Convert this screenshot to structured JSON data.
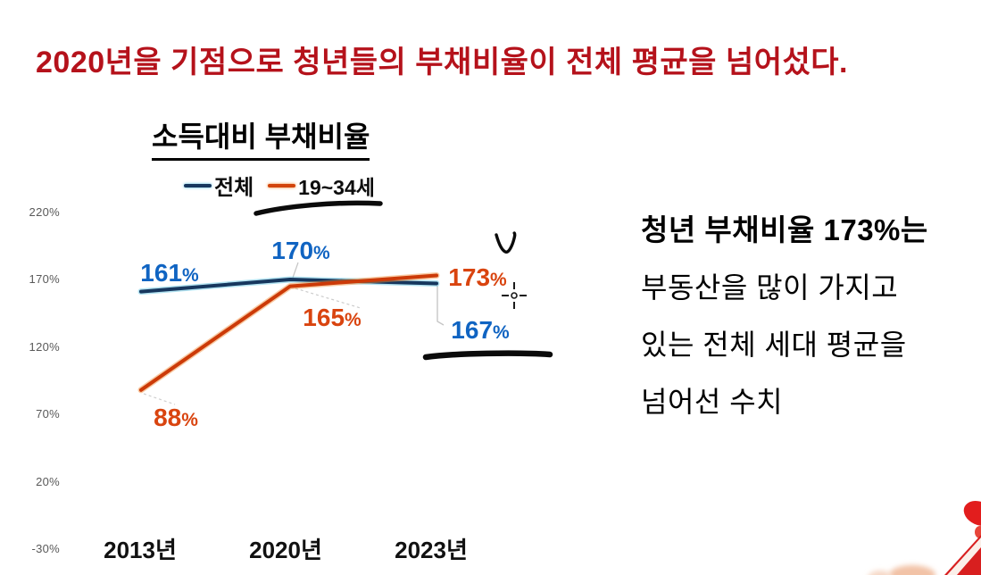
{
  "title": "2020년을 기점으로 청년들의 부채비율이 전체 평균을 넘어섰다.",
  "chart_data": {
    "type": "line",
    "title": "소득대비 부채비율",
    "categories": [
      "2013년",
      "2020년",
      "2023년"
    ],
    "series": [
      {
        "name": "전체",
        "color": "#17375e",
        "halo": "#56c0e0",
        "label_color": "#1064c2",
        "values": [
          161,
          170,
          167
        ]
      },
      {
        "name": "19~34세",
        "color": "#cc3a08",
        "halo": "#f08a33",
        "label_color": "#d9440f",
        "values": [
          88,
          165,
          173
        ]
      }
    ],
    "yticks": [
      220,
      170,
      120,
      70,
      20,
      -30
    ],
    "ylim": [
      -30,
      220
    ],
    "unit": "%",
    "legend_position": "top",
    "grid": false
  },
  "annotation": {
    "lines": [
      "청년 부채비율 173%는",
      "부동산을 많이 가지고",
      "있는 전체 세대 평균을",
      "넘어선 수치"
    ]
  },
  "colors": {
    "title_red": "#b5121b",
    "blue_label": "#1064c2",
    "orange_label": "#d9440f",
    "marker_black": "#0b0b0b",
    "tick_gray": "#595959"
  }
}
